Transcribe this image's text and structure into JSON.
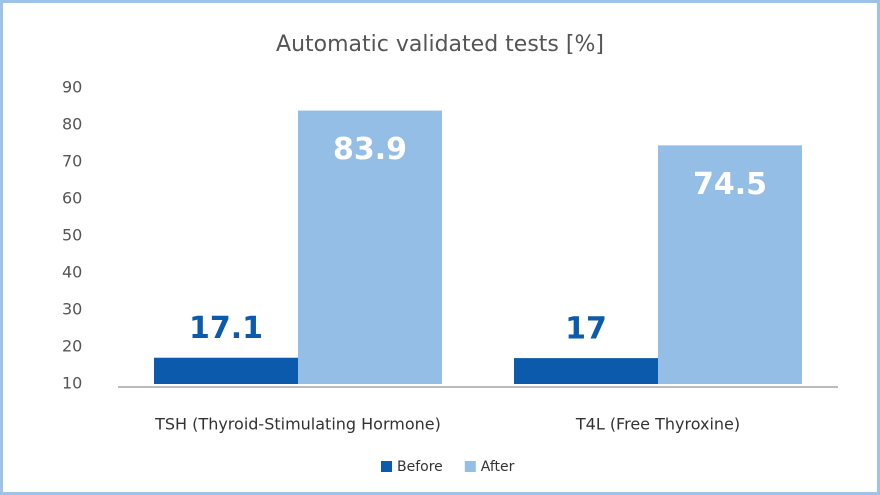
{
  "chart_data": {
    "type": "bar",
    "title": "Automatic validated tests [%]",
    "categories": [
      "TSH (Thyroid-Stimulating Hormone)",
      "T4L (Free Thyroxine)"
    ],
    "series": [
      {
        "name": "Before",
        "color": "#0b5aab",
        "values": [
          17.1,
          17
        ]
      },
      {
        "name": "After",
        "color": "#95bee6",
        "values": [
          83.9,
          74.5
        ]
      }
    ],
    "ylim": [
      10,
      90
    ],
    "yticks": [
      10,
      20,
      30,
      40,
      50,
      60,
      70,
      80,
      90
    ],
    "legend": "bottom",
    "grid": false
  }
}
